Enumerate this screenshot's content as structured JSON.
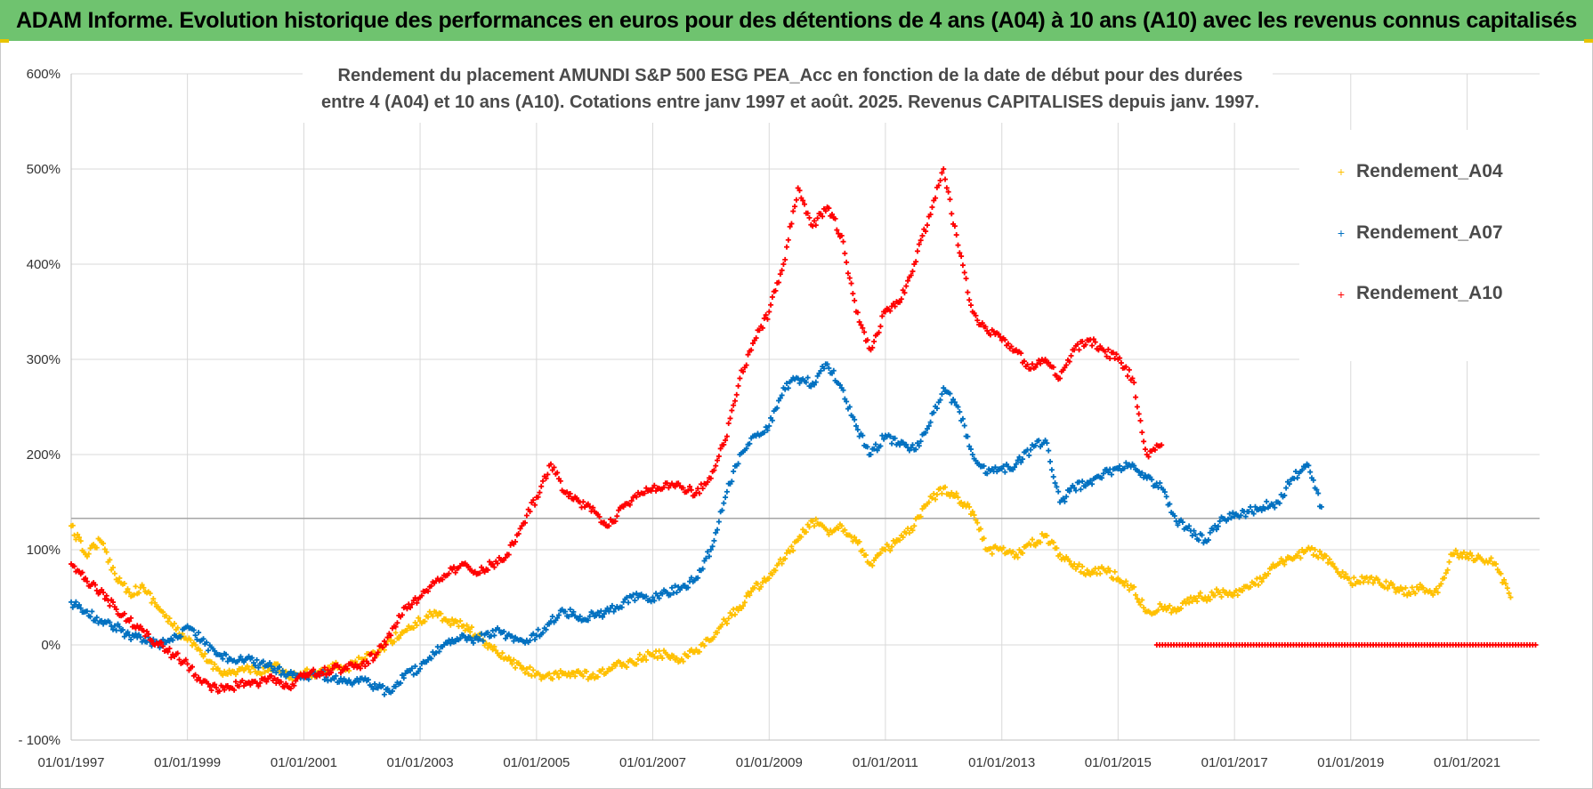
{
  "header": {
    "title": "ADAM Informe. Evolution historique des performances en euros pour des détentions de 4 ans (A04) à 10 ans (A10) avec les revenus connus capitalisés"
  },
  "colors": {
    "header_bg": "#6fc36f",
    "A04": "#ffc000",
    "A07": "#0070c0",
    "A10": "#ff0000",
    "grid": "#d9d9d9"
  },
  "chart_data": {
    "type": "scatter",
    "title_lines": [
      "Rendement du placement AMUNDI S&P 500 ESG PEA_Acc en fonction de la date de début pour des durées",
      "entre 4 (A04) et 10 ans (A10).  Cotations entre janv 1997 et août. 2025. Revenus CAPITALISES depuis janv. 1997."
    ],
    "x_type": "date",
    "xlim": [
      "1997-01-01",
      "2022-04-01"
    ],
    "ylim": [
      -100,
      600
    ],
    "y_ticks": [
      "- 100%",
      "0%",
      "100%",
      "200%",
      "300%",
      "400%",
      "500%",
      "600%"
    ],
    "y_tick_values": [
      -100,
      0,
      100,
      200,
      300,
      400,
      500,
      600
    ],
    "x_ticks": [
      "01/01/1997",
      "01/01/1999",
      "01/01/2001",
      "01/01/2003",
      "01/01/2005",
      "01/01/2007",
      "01/01/2009",
      "01/01/2011",
      "01/01/2013",
      "01/01/2015",
      "01/01/2017",
      "01/01/2019",
      "01/01/2021"
    ],
    "x_tick_dates": [
      "1997-01-01",
      "1999-01-01",
      "2001-01-01",
      "2003-01-01",
      "2005-01-01",
      "2007-01-01",
      "2009-01-01",
      "2011-01-01",
      "2013-01-01",
      "2015-01-01",
      "2017-01-01",
      "2019-01-01",
      "2021-01-01"
    ],
    "reference_line_y": 133,
    "grid": true,
    "legend_position": "top-right",
    "marker": "+",
    "series": [
      {
        "name": "Rendement_A04",
        "color": "#ffc000",
        "x": [
          "1997-01-01",
          "1997-04-01",
          "1997-07-01",
          "1997-10-01",
          "1998-01-01",
          "1998-04-01",
          "1998-07-01",
          "1998-10-01",
          "1999-01-01",
          "1999-04-01",
          "1999-07-01",
          "1999-10-01",
          "2000-01-01",
          "2000-04-01",
          "2000-07-01",
          "2000-10-01",
          "2001-01-01",
          "2001-04-01",
          "2001-07-01",
          "2001-10-01",
          "2002-01-01",
          "2002-04-01",
          "2002-07-01",
          "2002-10-01",
          "2003-01-01",
          "2003-04-01",
          "2003-07-01",
          "2003-10-01",
          "2004-01-01",
          "2004-04-01",
          "2004-07-01",
          "2004-10-01",
          "2005-01-01",
          "2005-04-01",
          "2005-07-01",
          "2005-10-01",
          "2006-01-01",
          "2006-04-01",
          "2006-07-01",
          "2006-10-01",
          "2007-01-01",
          "2007-04-01",
          "2007-07-01",
          "2007-10-01",
          "2008-01-01",
          "2008-04-01",
          "2008-07-01",
          "2008-10-01",
          "2009-01-01",
          "2009-04-01",
          "2009-07-01",
          "2009-10-01",
          "2010-01-01",
          "2010-04-01",
          "2010-07-01",
          "2010-10-01",
          "2011-01-01",
          "2011-04-01",
          "2011-07-01",
          "2011-10-01",
          "2012-01-01",
          "2012-04-01",
          "2012-07-01",
          "2012-10-01",
          "2013-01-01",
          "2013-04-01",
          "2013-07-01",
          "2013-10-01",
          "2014-01-01",
          "2014-04-01",
          "2014-07-01",
          "2014-10-01",
          "2015-01-01",
          "2015-04-01",
          "2015-07-01",
          "2015-10-01",
          "2016-01-01",
          "2016-04-01",
          "2016-07-01",
          "2016-10-01",
          "2017-01-01",
          "2017-04-01",
          "2017-07-01",
          "2017-10-01",
          "2018-01-01",
          "2018-04-01",
          "2018-07-01",
          "2018-10-01",
          "2019-01-01",
          "2019-04-01",
          "2019-07-01",
          "2019-10-01",
          "2020-01-01",
          "2020-04-01",
          "2020-07-01",
          "2020-10-01",
          "2021-01-01",
          "2021-04-01",
          "2021-07-01",
          "2021-10-01"
        ],
        "y": [
          125,
          95,
          110,
          75,
          55,
          60,
          40,
          20,
          5,
          -10,
          -25,
          -30,
          -25,
          -30,
          -20,
          -35,
          -30,
          -30,
          -20,
          -25,
          -15,
          -10,
          5,
          15,
          25,
          35,
          25,
          20,
          10,
          -5,
          -15,
          -25,
          -30,
          -35,
          -30,
          -30,
          -35,
          -25,
          -20,
          -15,
          -10,
          -10,
          -15,
          -5,
          5,
          25,
          40,
          60,
          70,
          90,
          110,
          130,
          120,
          125,
          110,
          85,
          100,
          110,
          125,
          150,
          165,
          155,
          140,
          100,
          100,
          95,
          105,
          115,
          95,
          85,
          75,
          80,
          70,
          60,
          35,
          40,
          35,
          50,
          50,
          55,
          55,
          60,
          70,
          85,
          90,
          100,
          95,
          80,
          65,
          70,
          65,
          60,
          55,
          60,
          55,
          95,
          95,
          90,
          85,
          50
        ]
      },
      {
        "name": "Rendement_A07",
        "color": "#0070c0",
        "x": [
          "1997-01-01",
          "1997-04-01",
          "1997-07-01",
          "1997-10-01",
          "1998-01-01",
          "1998-04-01",
          "1998-07-01",
          "1998-10-01",
          "1999-01-01",
          "1999-04-01",
          "1999-07-01",
          "1999-10-01",
          "2000-01-01",
          "2000-04-01",
          "2000-07-01",
          "2000-10-01",
          "2001-01-01",
          "2001-04-01",
          "2001-07-01",
          "2001-10-01",
          "2002-01-01",
          "2002-04-01",
          "2002-07-01",
          "2002-10-01",
          "2003-01-01",
          "2003-04-01",
          "2003-07-01",
          "2003-10-01",
          "2004-01-01",
          "2004-04-01",
          "2004-07-01",
          "2004-10-01",
          "2005-01-01",
          "2005-04-01",
          "2005-07-01",
          "2005-10-01",
          "2006-01-01",
          "2006-04-01",
          "2006-07-01",
          "2006-10-01",
          "2007-01-01",
          "2007-04-01",
          "2007-07-01",
          "2007-10-01",
          "2008-01-01",
          "2008-04-01",
          "2008-07-01",
          "2008-10-01",
          "2009-01-01",
          "2009-04-01",
          "2009-07-01",
          "2009-10-01",
          "2010-01-01",
          "2010-04-01",
          "2010-07-01",
          "2010-10-01",
          "2011-01-01",
          "2011-04-01",
          "2011-07-01",
          "2011-10-01",
          "2012-01-01",
          "2012-04-01",
          "2012-07-01",
          "2012-10-01",
          "2013-01-01",
          "2013-04-01",
          "2013-07-01",
          "2013-10-01",
          "2014-01-01",
          "2014-04-01",
          "2014-07-01",
          "2014-10-01",
          "2015-01-01",
          "2015-04-01",
          "2015-07-01",
          "2015-10-01",
          "2016-01-01",
          "2016-04-01",
          "2016-07-01",
          "2016-10-01",
          "2017-01-01",
          "2017-04-01",
          "2017-07-01",
          "2017-10-01",
          "2018-01-01",
          "2018-04-01",
          "2018-07-01"
        ],
        "y": [
          45,
          35,
          25,
          20,
          10,
          5,
          0,
          5,
          20,
          5,
          -10,
          -15,
          -15,
          -20,
          -25,
          -30,
          -35,
          -30,
          -35,
          -40,
          -35,
          -45,
          -50,
          -30,
          -25,
          -10,
          5,
          10,
          5,
          15,
          10,
          5,
          10,
          25,
          35,
          30,
          30,
          35,
          45,
          50,
          50,
          55,
          60,
          70,
          100,
          155,
          200,
          220,
          230,
          270,
          280,
          275,
          295,
          270,
          230,
          200,
          220,
          210,
          205,
          230,
          270,
          250,
          200,
          180,
          185,
          190,
          205,
          215,
          150,
          165,
          170,
          180,
          185,
          190,
          175,
          165,
          130,
          120,
          110,
          130,
          135,
          140,
          145,
          150,
          175,
          190,
          145
        ]
      },
      {
        "name": "Rendement_A10",
        "color": "#ff0000",
        "x": [
          "1997-01-01",
          "1997-04-01",
          "1997-07-01",
          "1997-10-01",
          "1998-01-01",
          "1998-04-01",
          "1998-07-01",
          "1998-10-01",
          "1999-01-01",
          "1999-04-01",
          "1999-07-01",
          "1999-10-01",
          "2000-01-01",
          "2000-04-01",
          "2000-07-01",
          "2000-10-01",
          "2001-01-01",
          "2001-04-01",
          "2001-07-01",
          "2001-10-01",
          "2002-01-01",
          "2002-04-01",
          "2002-07-01",
          "2002-10-01",
          "2003-01-01",
          "2003-04-01",
          "2003-07-01",
          "2003-10-01",
          "2004-01-01",
          "2004-04-01",
          "2004-07-01",
          "2004-10-01",
          "2005-01-01",
          "2005-04-01",
          "2005-07-01",
          "2005-10-01",
          "2006-01-01",
          "2006-04-01",
          "2006-07-01",
          "2006-10-01",
          "2007-01-01",
          "2007-04-01",
          "2007-07-01",
          "2007-10-01",
          "2008-01-01",
          "2008-04-01",
          "2008-07-01",
          "2008-10-01",
          "2009-01-01",
          "2009-04-01",
          "2009-07-01",
          "2009-10-01",
          "2010-01-01",
          "2010-04-01",
          "2010-07-01",
          "2010-10-01",
          "2011-01-01",
          "2011-04-01",
          "2011-07-01",
          "2011-10-01",
          "2012-01-01",
          "2012-04-01",
          "2012-07-01",
          "2012-10-01",
          "2013-01-01",
          "2013-04-01",
          "2013-07-01",
          "2013-10-01",
          "2014-01-01",
          "2014-04-01",
          "2014-07-01",
          "2014-10-01",
          "2015-01-01",
          "2015-04-01",
          "2015-07-01",
          "2015-10-01"
        ],
        "y": [
          85,
          70,
          55,
          40,
          25,
          15,
          0,
          -10,
          -20,
          -40,
          -45,
          -45,
          -40,
          -40,
          -35,
          -45,
          -30,
          -30,
          -25,
          -25,
          -20,
          -10,
          10,
          40,
          50,
          65,
          75,
          85,
          75,
          85,
          95,
          125,
          155,
          190,
          160,
          150,
          140,
          125,
          145,
          160,
          165,
          170,
          165,
          160,
          175,
          215,
          280,
          320,
          350,
          400,
          480,
          440,
          460,
          430,
          350,
          310,
          350,
          360,
          400,
          450,
          500,
          420,
          350,
          330,
          320,
          310,
          290,
          300,
          280,
          310,
          320,
          310,
          300,
          280,
          200,
          210
        ]
      },
      {
        "name": "Rendement_A10_tail",
        "color": "#ff0000",
        "x_range": [
          "2015-09-01",
          "2022-04-01"
        ],
        "y_constant": 0
      }
    ],
    "legend": [
      "Rendement_A04",
      "Rendement_A07",
      "Rendement_A10"
    ]
  }
}
